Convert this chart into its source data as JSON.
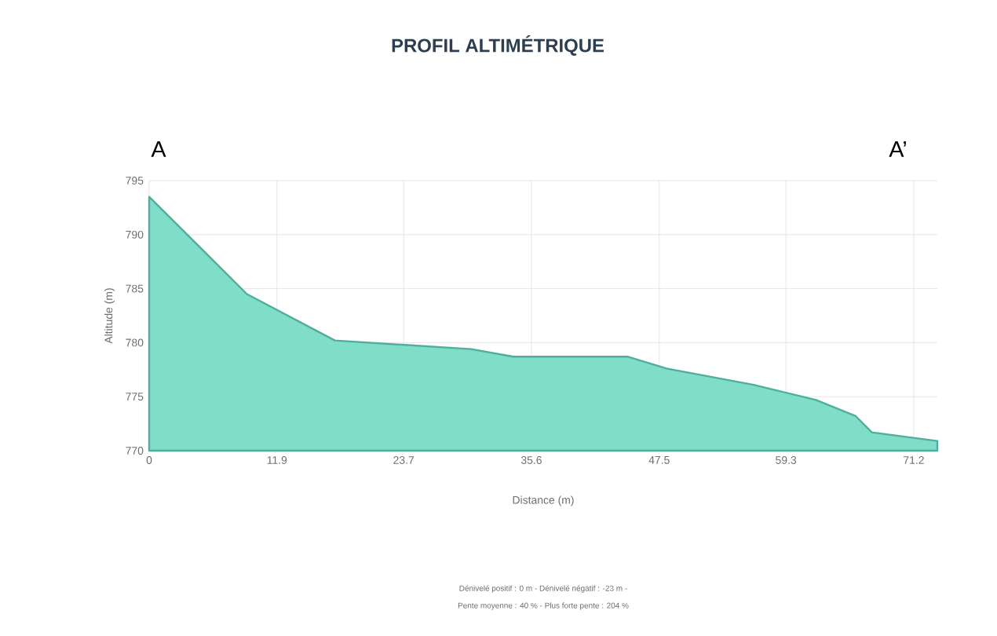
{
  "chart_data": {
    "type": "area",
    "title": "PROFIL ALTIMÉTRIQUE",
    "xlabel": "Distance (m)",
    "ylabel": "Altitude (m)",
    "x": [
      0,
      9.1,
      17.3,
      30.0,
      33.9,
      44.6,
      48.2,
      56.3,
      62.1,
      65.8,
      67.3,
      73.4
    ],
    "series": [
      {
        "color": "#4fae9e",
        "values": [
          793.5,
          784.5,
          780.2,
          779.4,
          778.7,
          778.7,
          777.6,
          776.1,
          774.7,
          773.2,
          771.7,
          770.9
        ]
      }
    ],
    "xlim": [
      0,
      73.4
    ],
    "ylim": [
      770,
      795
    ],
    "xticks": [
      0,
      11.9,
      23.7,
      35.6,
      47.5,
      59.3,
      71.2
    ],
    "yticks": [
      770,
      775,
      780,
      785,
      790,
      795
    ],
    "grid": true,
    "annotations": [
      "A",
      "A’",
      "Dénivelé positif : 0 m - Dénivelé négatif : -23 m -",
      "Pente moyenne : 40 % - Plus forte pente : 204 %"
    ]
  }
}
